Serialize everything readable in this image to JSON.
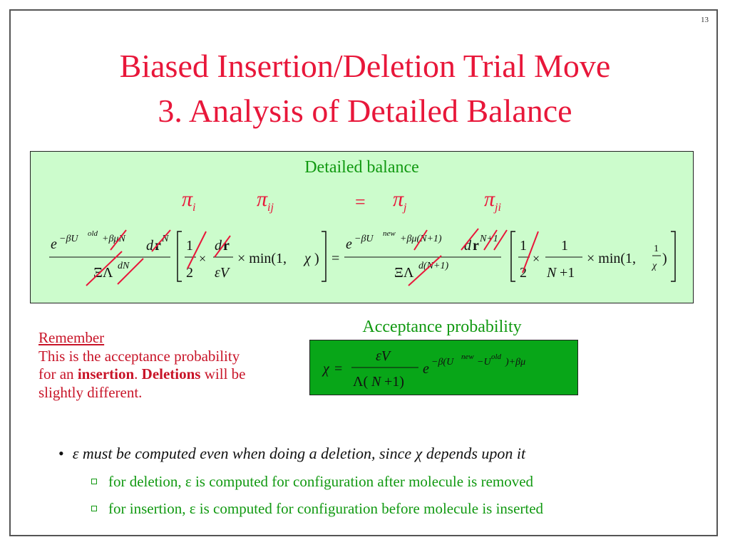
{
  "slide": {
    "number": "13"
  },
  "title": {
    "line1": "Biased Insertion/Deletion Trial Move",
    "line2": "3.  Analysis of Detailed Balance"
  },
  "detailed_balance": {
    "label": "Detailed balance",
    "pi_i": "π",
    "pi_i_sub": "i",
    "pi_ij": "π",
    "pi_ij_sub": "ij",
    "equals": "=",
    "pi_j": "π",
    "pi_j_sub": "j",
    "pi_ji": "π",
    "pi_ji_sub": "ji"
  },
  "acceptance": {
    "label": "Acceptance probability"
  },
  "remember": {
    "heading": "Remember",
    "line1": "This is the acceptance probability",
    "line2_pre": "for an ",
    "line2_bold1": "insertion",
    "line2_mid": ".  ",
    "line2_bold2": "Deletions",
    "line2_post": " will be",
    "line3": "slightly different."
  },
  "bullets": {
    "main_eps": "ε",
    "main_text1": " must be computed even when doing a deletion, since ",
    "main_chi": "χ",
    "main_text2": " depends upon it",
    "sub1": "for deletion, ε is computed for configuration after molecule is removed",
    "sub2": "for insertion, ε is computed for configuration before molecule is inserted"
  },
  "colors": {
    "title": "#e8173a",
    "green_text": "#119911",
    "box_light": "#ccfccc",
    "box_dark": "#08a618",
    "strike": "#e8173a"
  }
}
